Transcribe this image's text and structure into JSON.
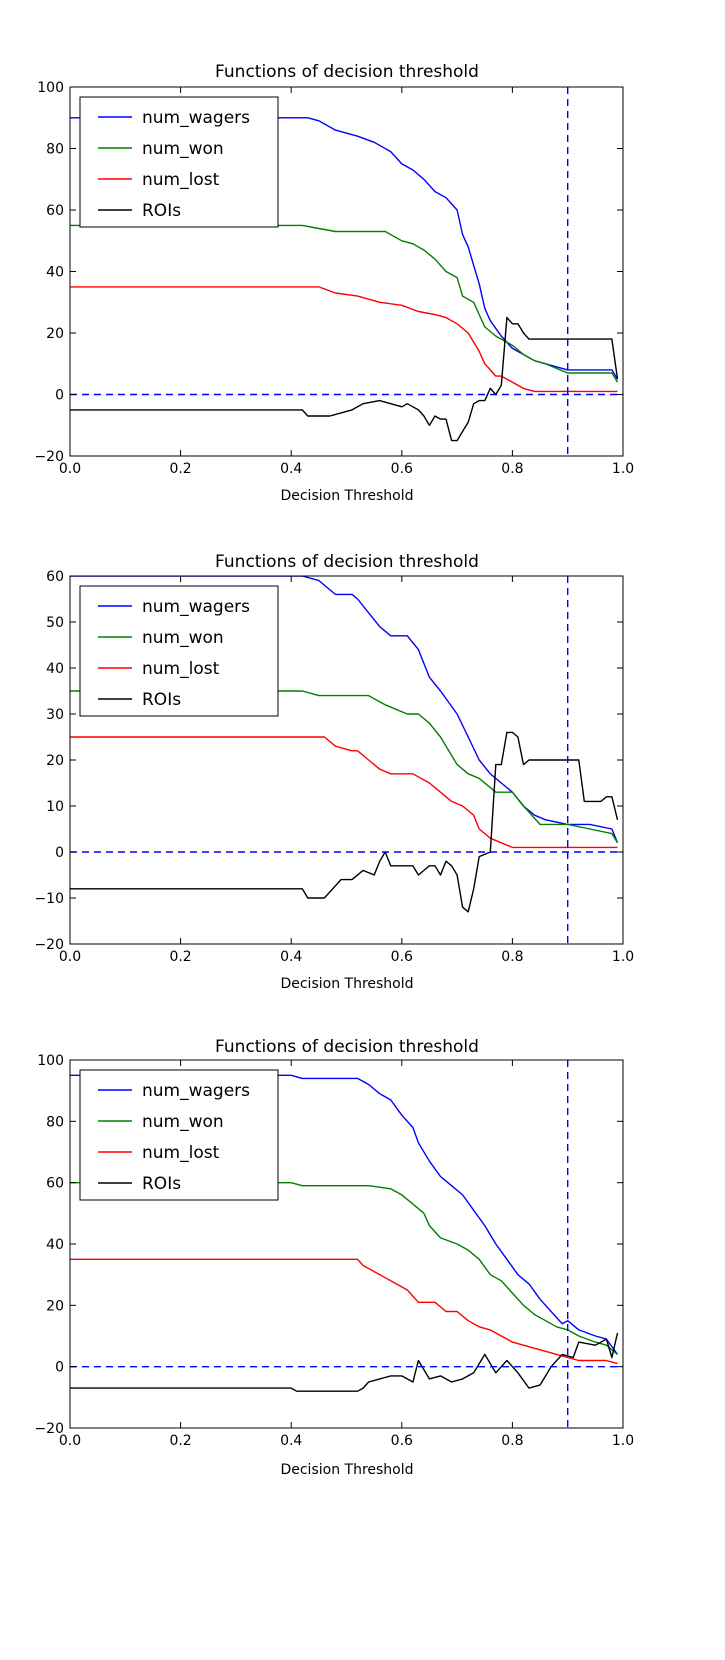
{
  "chart_data": [
    {
      "type": "line",
      "title": "Functions of decision threshold",
      "xlabel": "Decision Threshold",
      "ylabel": "",
      "xlim": [
        0.0,
        1.0
      ],
      "ylim": [
        -20,
        100
      ],
      "xticks": [
        "0.0",
        "0.2",
        "0.4",
        "0.6",
        "0.8",
        "1.0"
      ],
      "yticks": [
        "100",
        "80",
        "60",
        "40",
        "20",
        "0",
        "−20"
      ],
      "xtick_values": [
        0.0,
        0.2,
        0.4,
        0.6,
        0.8,
        1.0
      ],
      "ytick_values": [
        100,
        80,
        60,
        40,
        20,
        0,
        -20
      ],
      "grid": false,
      "legend": "top-left",
      "reference_lines": {
        "hline_y": 0,
        "vline_x": 0.9,
        "color": "#0000ff",
        "style": "dashed"
      },
      "series": [
        {
          "name": "num_wagers",
          "color": "#0000ff",
          "x": [
            0.0,
            0.43,
            0.45,
            0.48,
            0.52,
            0.55,
            0.58,
            0.6,
            0.62,
            0.64,
            0.66,
            0.68,
            0.7,
            0.71,
            0.72,
            0.73,
            0.74,
            0.75,
            0.76,
            0.78,
            0.8,
            0.82,
            0.84,
            0.86,
            0.9,
            0.94,
            0.98,
            0.99
          ],
          "y": [
            90,
            90,
            89,
            86,
            84,
            82,
            79,
            75,
            73,
            70,
            66,
            64,
            60,
            52,
            48,
            42,
            36,
            28,
            24,
            19,
            15,
            13,
            11,
            10,
            8,
            8,
            8,
            5
          ]
        },
        {
          "name": "num_won",
          "color": "#008000",
          "x": [
            0.0,
            0.42,
            0.45,
            0.48,
            0.57,
            0.6,
            0.62,
            0.64,
            0.66,
            0.68,
            0.7,
            0.71,
            0.73,
            0.74,
            0.75,
            0.77,
            0.8,
            0.82,
            0.84,
            0.86,
            0.9,
            0.94,
            0.98,
            0.99
          ],
          "y": [
            55,
            55,
            54,
            53,
            53,
            50,
            49,
            47,
            44,
            40,
            38,
            32,
            30,
            26,
            22,
            19,
            16,
            13,
            11,
            10,
            7,
            7,
            7,
            4
          ]
        },
        {
          "name": "num_lost",
          "color": "#ff0000",
          "x": [
            0.0,
            0.45,
            0.48,
            0.52,
            0.56,
            0.6,
            0.63,
            0.66,
            0.68,
            0.7,
            0.72,
            0.74,
            0.75,
            0.76,
            0.77,
            0.78,
            0.8,
            0.82,
            0.84,
            0.9,
            0.99
          ],
          "y": [
            35,
            35,
            33,
            32,
            30,
            29,
            27,
            26,
            25,
            23,
            20,
            14,
            10,
            8,
            6,
            6,
            4,
            2,
            1,
            1,
            1
          ]
        },
        {
          "name": "ROIs",
          "color": "#000000",
          "x": [
            0.0,
            0.42,
            0.43,
            0.47,
            0.49,
            0.51,
            0.53,
            0.56,
            0.58,
            0.6,
            0.61,
            0.62,
            0.63,
            0.64,
            0.65,
            0.66,
            0.67,
            0.68,
            0.69,
            0.7,
            0.71,
            0.72,
            0.73,
            0.74,
            0.75,
            0.76,
            0.77,
            0.78,
            0.79,
            0.8,
            0.81,
            0.82,
            0.83,
            0.85,
            0.86,
            0.88,
            0.9,
            0.98,
            0.99
          ],
          "y": [
            -5,
            -5,
            -7,
            -7,
            -6,
            -5,
            -3,
            -2,
            -3,
            -4,
            -3,
            -4,
            -5,
            -7,
            -10,
            -7,
            -8,
            -8,
            -15,
            -15,
            -12,
            -9,
            -3,
            -2,
            -2,
            2,
            0,
            3,
            25,
            23,
            23,
            20,
            18,
            18,
            18,
            18,
            18,
            18,
            5
          ]
        }
      ]
    },
    {
      "type": "line",
      "title": "Functions of decision threshold",
      "xlabel": "Decision Threshold",
      "ylabel": "",
      "xlim": [
        0.0,
        1.0
      ],
      "ylim": [
        -20,
        60
      ],
      "xticks": [
        "0.0",
        "0.2",
        "0.4",
        "0.6",
        "0.8",
        "1.0"
      ],
      "yticks": [
        "60",
        "50",
        "40",
        "30",
        "20",
        "10",
        "0",
        "−10",
        "−20"
      ],
      "xtick_values": [
        0.0,
        0.2,
        0.4,
        0.6,
        0.8,
        1.0
      ],
      "ytick_values": [
        60,
        50,
        40,
        30,
        20,
        10,
        0,
        -10,
        -20
      ],
      "grid": false,
      "legend": "top-left",
      "reference_lines": {
        "hline_y": 0,
        "vline_x": 0.9,
        "color": "#0000ff",
        "style": "dashed"
      },
      "series": [
        {
          "name": "num_wagers",
          "color": "#0000ff",
          "x": [
            0.0,
            0.42,
            0.45,
            0.48,
            0.51,
            0.52,
            0.54,
            0.56,
            0.58,
            0.61,
            0.63,
            0.65,
            0.67,
            0.7,
            0.72,
            0.74,
            0.76,
            0.78,
            0.8,
            0.82,
            0.84,
            0.86,
            0.9,
            0.94,
            0.98,
            0.99
          ],
          "y": [
            60,
            60,
            59,
            56,
            56,
            55,
            52,
            49,
            47,
            47,
            44,
            38,
            35,
            30,
            25,
            20,
            17,
            15,
            13,
            10,
            8,
            7,
            6,
            6,
            5,
            2
          ]
        },
        {
          "name": "num_won",
          "color": "#008000",
          "x": [
            0.0,
            0.42,
            0.45,
            0.48,
            0.54,
            0.57,
            0.61,
            0.63,
            0.65,
            0.67,
            0.7,
            0.72,
            0.74,
            0.77,
            0.8,
            0.82,
            0.85,
            0.9,
            0.94,
            0.98,
            0.99
          ],
          "y": [
            35,
            35,
            34,
            34,
            34,
            32,
            30,
            30,
            28,
            25,
            19,
            17,
            16,
            13,
            13,
            10,
            6,
            6,
            5,
            4,
            2
          ]
        },
        {
          "name": "num_lost",
          "color": "#ff0000",
          "x": [
            0.0,
            0.46,
            0.48,
            0.51,
            0.52,
            0.54,
            0.56,
            0.58,
            0.62,
            0.65,
            0.67,
            0.69,
            0.71,
            0.73,
            0.74,
            0.76,
            0.78,
            0.8,
            0.82,
            0.9,
            0.99
          ],
          "y": [
            25,
            25,
            23,
            22,
            22,
            20,
            18,
            17,
            17,
            15,
            13,
            11,
            10,
            8,
            5,
            3,
            2,
            1,
            1,
            1,
            1
          ]
        },
        {
          "name": "ROIs",
          "color": "#000000",
          "x": [
            0.0,
            0.42,
            0.43,
            0.46,
            0.49,
            0.51,
            0.53,
            0.55,
            0.56,
            0.57,
            0.58,
            0.62,
            0.63,
            0.64,
            0.65,
            0.66,
            0.67,
            0.68,
            0.69,
            0.7,
            0.71,
            0.72,
            0.73,
            0.74,
            0.76,
            0.77,
            0.78,
            0.79,
            0.8,
            0.81,
            0.82,
            0.83,
            0.85,
            0.9,
            0.92,
            0.93,
            0.96,
            0.97,
            0.98,
            0.99
          ],
          "y": [
            -8,
            -8,
            -10,
            -10,
            -6,
            -6,
            -4,
            -5,
            -2,
            0,
            -3,
            -3,
            -5,
            -4,
            -3,
            -3,
            -5,
            -2,
            -3,
            -5,
            -12,
            -13,
            -8,
            -1,
            0,
            19,
            19,
            26,
            26,
            25,
            19,
            20,
            20,
            20,
            20,
            11,
            11,
            12,
            12,
            7
          ]
        }
      ]
    },
    {
      "type": "line",
      "title": "Functions of decision threshold",
      "xlabel": "Decision Threshold",
      "ylabel": "",
      "xlim": [
        0.0,
        1.0
      ],
      "ylim": [
        -20,
        100
      ],
      "xticks": [
        "0.0",
        "0.2",
        "0.4",
        "0.6",
        "0.8",
        "1.0"
      ],
      "yticks": [
        "100",
        "80",
        "60",
        "40",
        "20",
        "0",
        "−20"
      ],
      "xtick_values": [
        0.0,
        0.2,
        0.4,
        0.6,
        0.8,
        1.0
      ],
      "ytick_values": [
        100,
        80,
        60,
        40,
        20,
        0,
        -20
      ],
      "grid": false,
      "legend": "top-left",
      "reference_lines": {
        "hline_y": 0,
        "vline_x": 0.9,
        "color": "#0000ff",
        "style": "dashed"
      },
      "series": [
        {
          "name": "num_wagers",
          "color": "#0000ff",
          "x": [
            0.0,
            0.4,
            0.42,
            0.52,
            0.54,
            0.56,
            0.58,
            0.6,
            0.62,
            0.63,
            0.65,
            0.67,
            0.69,
            0.71,
            0.73,
            0.75,
            0.77,
            0.79,
            0.81,
            0.83,
            0.85,
            0.87,
            0.89,
            0.9,
            0.92,
            0.95,
            0.97,
            0.99
          ],
          "y": [
            95,
            95,
            94,
            94,
            92,
            89,
            87,
            82,
            78,
            73,
            67,
            62,
            59,
            56,
            51,
            46,
            40,
            35,
            30,
            27,
            22,
            18,
            14,
            15,
            12,
            10,
            9,
            4
          ]
        },
        {
          "name": "num_won",
          "color": "#008000",
          "x": [
            0.0,
            0.4,
            0.42,
            0.52,
            0.54,
            0.58,
            0.6,
            0.62,
            0.64,
            0.65,
            0.67,
            0.7,
            0.72,
            0.74,
            0.76,
            0.78,
            0.8,
            0.82,
            0.84,
            0.86,
            0.88,
            0.9,
            0.92,
            0.95,
            0.97,
            0.99
          ],
          "y": [
            60,
            60,
            59,
            59,
            59,
            58,
            56,
            53,
            50,
            46,
            42,
            40,
            38,
            35,
            30,
            28,
            24,
            20,
            17,
            15,
            13,
            12,
            10,
            8,
            7,
            4
          ]
        },
        {
          "name": "num_lost",
          "color": "#ff0000",
          "x": [
            0.0,
            0.52,
            0.53,
            0.55,
            0.57,
            0.59,
            0.61,
            0.63,
            0.66,
            0.68,
            0.7,
            0.72,
            0.74,
            0.76,
            0.78,
            0.8,
            0.82,
            0.84,
            0.86,
            0.88,
            0.9,
            0.92,
            0.94,
            0.97,
            0.99
          ],
          "y": [
            35,
            35,
            33,
            31,
            29,
            27,
            25,
            21,
            21,
            18,
            18,
            15,
            13,
            12,
            10,
            8,
            7,
            6,
            5,
            4,
            3,
            2,
            2,
            2,
            1
          ]
        },
        {
          "name": "ROIs",
          "color": "#000000",
          "x": [
            0.0,
            0.4,
            0.41,
            0.52,
            0.53,
            0.54,
            0.56,
            0.58,
            0.6,
            0.62,
            0.63,
            0.65,
            0.67,
            0.69,
            0.71,
            0.73,
            0.75,
            0.77,
            0.79,
            0.81,
            0.83,
            0.85,
            0.87,
            0.89,
            0.91,
            0.92,
            0.95,
            0.97,
            0.98,
            0.99
          ],
          "y": [
            -7,
            -7,
            -8,
            -8,
            -7,
            -5,
            -4,
            -3,
            -3,
            -5,
            2,
            -4,
            -3,
            -5,
            -4,
            -2,
            4,
            -2,
            2,
            -2,
            -7,
            -6,
            0,
            4,
            3,
            8,
            7,
            9,
            3,
            11
          ]
        }
      ]
    }
  ]
}
